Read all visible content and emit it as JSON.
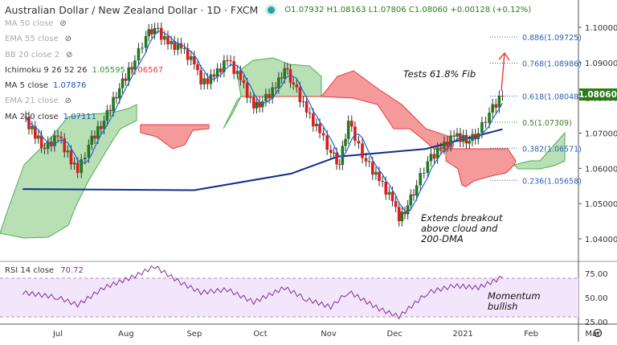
{
  "header": {
    "title": "Australian Dollar / New Zealand Dollar · 1D · FXCM",
    "ohlc": "O1.07932 H1.08163 L1.07806 C1.08060 +0.00128 (+0.12%)"
  },
  "indicators": [
    {
      "label": "MA 50 close",
      "hidden": true
    },
    {
      "label": "EMA 55 close",
      "hidden": true
    },
    {
      "label": "BB 20 close 2",
      "hidden": true
    },
    {
      "label": "Ichimoku 9 26 52 26",
      "values": [
        "1.05595",
        "1.06567"
      ],
      "colors": [
        "#2a9a2a",
        "#e53935"
      ]
    },
    {
      "label": "MA 5 close",
      "values": [
        "1.07876"
      ],
      "colors": [
        "#1e50c8"
      ]
    },
    {
      "label": "EMA 21 close",
      "hidden": true
    },
    {
      "label": "MA 200 close",
      "values": [
        "1.07111"
      ],
      "colors": [
        "#1e50c8"
      ]
    }
  ],
  "annotations": {
    "fib_test": "Tests 61.8% Fib",
    "breakout": "Extends breakout above cloud and 200-DMA",
    "momentum": "Momentum bullish"
  },
  "rsi": {
    "label": "RSI 14 close",
    "value": "70.72"
  },
  "colors": {
    "up": "#1f7a1f",
    "down": "#e01b1b",
    "ma5": "#1e63d6",
    "ma200": "#0d2f8c",
    "rsi": "#7b2fa0",
    "last_price_bg": "#2e7a18",
    "cloud_bull": "#a9d8a6",
    "cloud_bear": "#f28b8b"
  },
  "chart_data": [
    {
      "type": "candlestick",
      "title": "Australian Dollar / New Zealand Dollar · 1D · FXCM",
      "ylim": [
        1.035,
        1.105
      ],
      "y_ticks": [
        "1.10000",
        "1.09000",
        "1.08000",
        "1.07000",
        "1.06000",
        "1.05000",
        "1.04000"
      ],
      "x_ticks": [
        "Jul",
        "Aug",
        "Sep",
        "Oct",
        "Nov",
        "Dec",
        "2021",
        "Feb",
        "Mar"
      ],
      "last_price": "1.08060",
      "close": [
        [
          "2020-06-15",
          1.0747
        ],
        [
          "2020-06-25",
          1.0655
        ],
        [
          "2020-07-01",
          1.069
        ],
        [
          "2020-07-10",
          1.0587
        ],
        [
          "2020-07-15",
          1.0667
        ],
        [
          "2020-07-22",
          1.0735
        ],
        [
          "2020-07-29",
          1.0827
        ],
        [
          "2020-08-05",
          1.0906
        ],
        [
          "2020-08-10",
          1.0975
        ],
        [
          "2020-08-14",
          1.0998
        ],
        [
          "2020-08-20",
          1.0952
        ],
        [
          "2020-08-26",
          1.094
        ],
        [
          "2020-09-01",
          1.0895
        ],
        [
          "2020-09-04",
          1.0838
        ],
        [
          "2020-09-10",
          1.086
        ],
        [
          "2020-09-16",
          1.0906
        ],
        [
          "2020-09-22",
          1.085
        ],
        [
          "2020-09-28",
          1.077
        ],
        [
          "2020-10-02",
          1.079
        ],
        [
          "2020-10-08",
          1.0827
        ],
        [
          "2020-10-12",
          1.0884
        ],
        [
          "2020-10-16",
          1.0838
        ],
        [
          "2020-10-22",
          1.0758
        ],
        [
          "2020-10-28",
          1.07
        ],
        [
          "2020-11-02",
          1.0644
        ],
        [
          "2020-11-06",
          1.061
        ],
        [
          "2020-11-10",
          1.0735
        ],
        [
          "2020-11-13",
          1.0678
        ],
        [
          "2020-11-18",
          1.062
        ],
        [
          "2020-11-24",
          1.0564
        ],
        [
          "2020-11-30",
          1.0507
        ],
        [
          "2020-12-03",
          1.045
        ],
        [
          "2020-12-07",
          1.0495
        ],
        [
          "2020-12-11",
          1.0552
        ],
        [
          "2020-12-16",
          1.062
        ],
        [
          "2020-12-22",
          1.0655
        ],
        [
          "2020-12-28",
          1.069
        ],
        [
          "2021-01-04",
          1.0678
        ],
        [
          "2021-01-08",
          1.07
        ],
        [
          "2021-01-13",
          1.0758
        ],
        [
          "2021-01-19",
          1.0806
        ]
      ],
      "ma200": [
        [
          "2020-06-15",
          1.0541
        ],
        [
          "2020-09-01",
          1.0538
        ],
        [
          "2020-10-15",
          1.0585
        ],
        [
          "2020-11-05",
          1.0633
        ],
        [
          "2020-12-15",
          1.0655
        ],
        [
          "2021-01-19",
          1.0711
        ]
      ],
      "fib_levels": [
        {
          "label": "0.886(1.09725)",
          "price": 1.09725,
          "color": "#2f5fb3"
        },
        {
          "label": "0.768(1.08986)",
          "price": 1.08986,
          "color": "#2f5fb3"
        },
        {
          "label": "0.618(1.08048)",
          "price": 1.08048,
          "color": "#2f5fb3"
        },
        {
          "label": "0.5(1.07309)",
          "price": 1.07309,
          "color": "#3a7d2a"
        },
        {
          "label": "0.382(1.06571)",
          "price": 1.06571,
          "color": "#2f5fb3"
        },
        {
          "label": "0.236(1.05658)",
          "price": 1.05658,
          "color": "#2f5fb3"
        }
      ]
    },
    {
      "type": "line",
      "title": "RSI 14 close",
      "ylim": [
        25,
        75
      ],
      "y_ticks": [
        "75.00",
        "50.00",
        "25.00"
      ],
      "bands": [
        30,
        70
      ],
      "values": [
        [
          "2020-06-15",
          55
        ],
        [
          "2020-07-01",
          50
        ],
        [
          "2020-07-10",
          42
        ],
        [
          "2020-07-22",
          60
        ],
        [
          "2020-08-05",
          72
        ],
        [
          "2020-08-14",
          82
        ],
        [
          "2020-08-26",
          65
        ],
        [
          "2020-09-04",
          55
        ],
        [
          "2020-09-16",
          58
        ],
        [
          "2020-09-28",
          45
        ],
        [
          "2020-10-12",
          60
        ],
        [
          "2020-10-22",
          48
        ],
        [
          "2020-11-02",
          40
        ],
        [
          "2020-11-10",
          56
        ],
        [
          "2020-11-24",
          38
        ],
        [
          "2020-12-03",
          30
        ],
        [
          "2020-12-16",
          55
        ],
        [
          "2020-12-28",
          62
        ],
        [
          "2021-01-08",
          60
        ],
        [
          "2021-01-19",
          70.72
        ]
      ]
    }
  ]
}
